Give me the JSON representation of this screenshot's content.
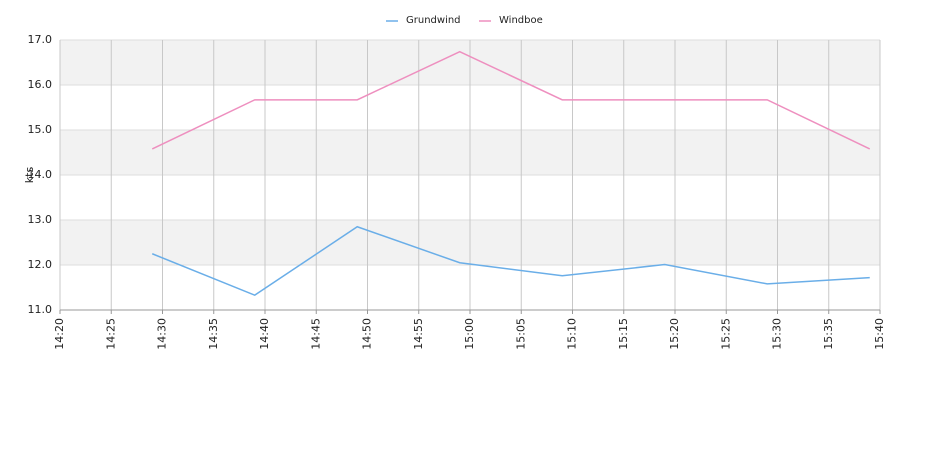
{
  "chart_data": {
    "type": "line",
    "y_label": "kts",
    "x": [
      "14:29",
      "14:39",
      "14:49",
      "14:59",
      "15:09",
      "15:19",
      "15:29",
      "15:39"
    ],
    "series": [
      {
        "name": "Grundwind",
        "color": "#6aaee8",
        "values": [
          12.25,
          11.33,
          12.85,
          12.05,
          11.76,
          12.01,
          11.58,
          11.72
        ]
      },
      {
        "name": "Windboe",
        "color": "#ee8fbf",
        "values": [
          14.58,
          15.67,
          15.67,
          16.74,
          15.67,
          15.67,
          15.67,
          14.58
        ]
      }
    ],
    "xlim": [
      "14:20",
      "15:40"
    ],
    "xticks": [
      "14:20",
      "14:25",
      "14:30",
      "14:35",
      "14:40",
      "14:45",
      "14:50",
      "14:55",
      "15:00",
      "15:05",
      "15:10",
      "15:15",
      "15:20",
      "15:25",
      "15:30",
      "15:35",
      "15:40"
    ],
    "ylim": [
      11,
      17
    ],
    "yticks": [
      {
        "value": 11,
        "label": "11.0"
      },
      {
        "value": 12,
        "label": "12.0"
      },
      {
        "value": 13,
        "label": "13.0"
      },
      {
        "value": 14,
        "label": "14.0"
      },
      {
        "value": 15,
        "label": "15.0"
      },
      {
        "value": 16,
        "label": "16.0"
      },
      {
        "value": 17,
        "label": "17.0"
      }
    ],
    "grid": true,
    "legend": "top"
  }
}
